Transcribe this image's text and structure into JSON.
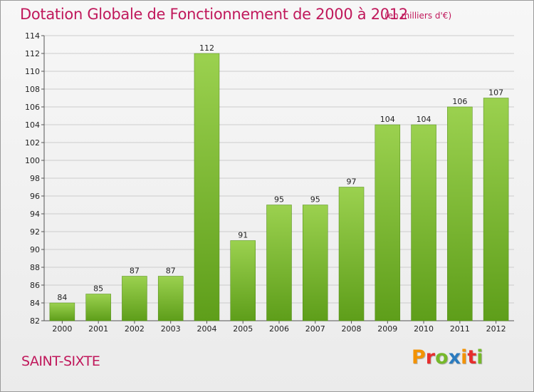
{
  "header": {
    "title": "Dotation Globale de Fonctionnement de 2000 à 2012",
    "unit_note": "(en milliers d'€)"
  },
  "footer": {
    "commune": "SAINT-SIXTE",
    "logo_letters": [
      "P",
      "r",
      "o",
      "x",
      "i",
      "t",
      "i"
    ],
    "logo_colors": [
      "#f39200",
      "#e62e2d",
      "#76b82a",
      "#2b7bbf",
      "#f39200",
      "#e62e2d",
      "#76b82a"
    ]
  },
  "colors": {
    "title": "#c0185b",
    "bar_top": "#9bd14f",
    "bar_bottom": "#5e9e1a",
    "grid": "#cccccc"
  },
  "chart_data": {
    "type": "bar",
    "title": "Dotation Globale de Fonctionnement de 2000 à 2012",
    "subtitle": "(en milliers d'€)",
    "categories": [
      "2000",
      "2001",
      "2002",
      "2003",
      "2004",
      "2005",
      "2006",
      "2007",
      "2008",
      "2009",
      "2010",
      "2011",
      "2012"
    ],
    "values": [
      84,
      85,
      87,
      87,
      112,
      91,
      95,
      95,
      97,
      104,
      104,
      106,
      107
    ],
    "ylim": [
      82,
      114
    ],
    "yticks": [
      82,
      84,
      86,
      88,
      90,
      92,
      94,
      96,
      98,
      100,
      102,
      104,
      106,
      108,
      110,
      112,
      114
    ],
    "grid": true,
    "xlabel": "",
    "ylabel": ""
  }
}
